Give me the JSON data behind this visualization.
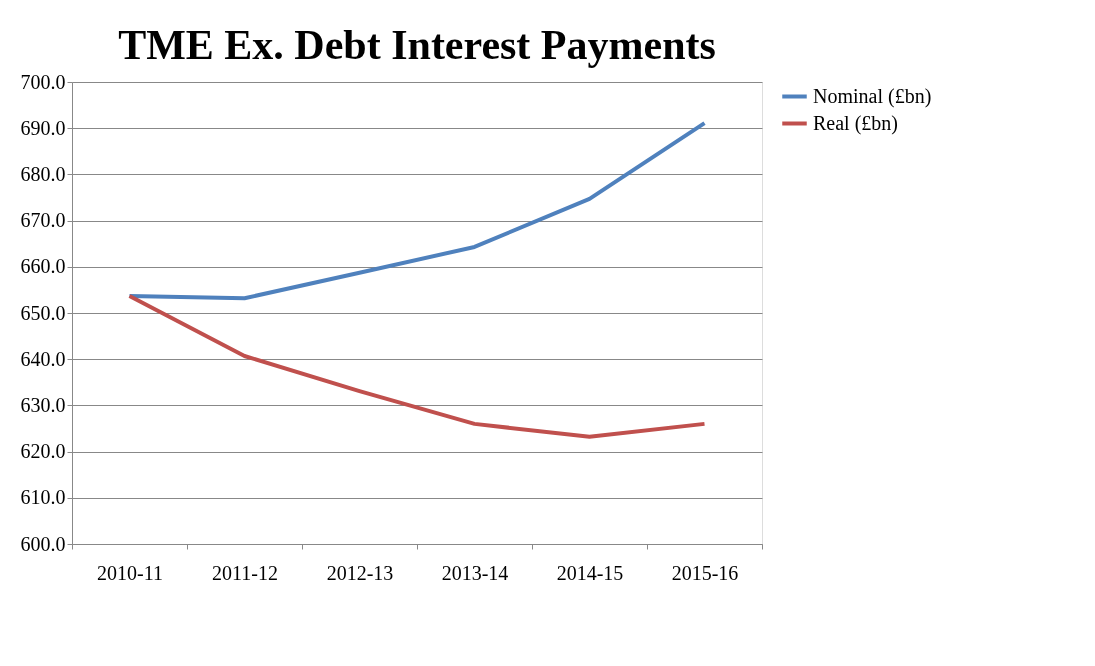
{
  "chart_data": {
    "type": "line",
    "title": "TME Ex. Debt Interest Payments",
    "categories": [
      "2010-11",
      "2011-12",
      "2012-13",
      "2013-14",
      "2014-15",
      "2015-16"
    ],
    "series": [
      {
        "name": "Nominal (£bn)",
        "color": "#4f81bd",
        "values": [
          653.7,
          653.2,
          658.7,
          664.3,
          674.7,
          691.1
        ]
      },
      {
        "name": "Real (£bn)",
        "color": "#c0504d",
        "values": [
          653.7,
          640.7,
          633.1,
          626.0,
          623.2,
          626.0
        ]
      }
    ],
    "ylim": [
      600,
      700
    ],
    "yticks": [
      {
        "value": 600,
        "label": "600.0"
      },
      {
        "value": 610,
        "label": "610.0"
      },
      {
        "value": 620,
        "label": "620.0"
      },
      {
        "value": 630,
        "label": "630.0"
      },
      {
        "value": 640,
        "label": "640.0"
      },
      {
        "value": 650,
        "label": "650.0"
      },
      {
        "value": 660,
        "label": "660.0"
      },
      {
        "value": 670,
        "label": "670.0"
      },
      {
        "value": 680,
        "label": "680.0"
      },
      {
        "value": 690,
        "label": "690.0"
      },
      {
        "value": 700,
        "label": "700.0"
      }
    ],
    "grid": "y",
    "legend": "right",
    "marker": "none",
    "line_style": "solid"
  }
}
